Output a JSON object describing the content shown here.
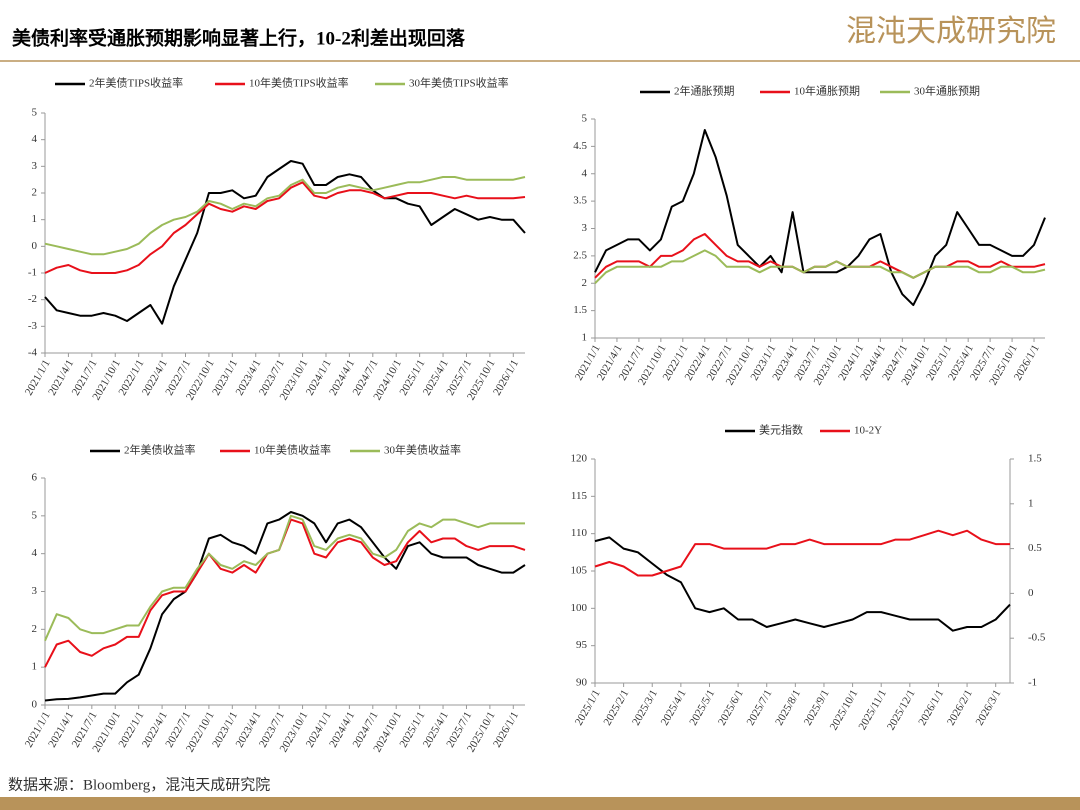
{
  "header": {
    "title": "美债利率受通胀预期影响显著上行，10-2利差出现回落",
    "logo": "混沌天成研究院"
  },
  "footer": {
    "source": "数据来源：Bloomberg，混沌天成研究院"
  },
  "chart_data": [
    {
      "type": "line",
      "categories": [
        "2021/1/1",
        null,
        "2021/4/1",
        null,
        "2021/7/1",
        null,
        "2021/10/1",
        null,
        "2022/1/1",
        null,
        "2022/4/1",
        null,
        "2022/7/1",
        null,
        "2022/10/1",
        null,
        "2023/1/1",
        null,
        "2023/4/1",
        null,
        "2023/7/1",
        null,
        "2023/10/1",
        null,
        "2024/1/1",
        null,
        "2024/4/1",
        null,
        "2024/7/1",
        null,
        "2024/10/1",
        null,
        "2025/1/1",
        null,
        "2025/4/1",
        null,
        "2025/7/1",
        null,
        "2025/10/1",
        null,
        "2026/1/1",
        null
      ],
      "ylim": [
        -4,
        5
      ],
      "yticks": [
        -4,
        -3,
        -2,
        -1,
        0,
        1,
        2,
        3,
        4,
        5
      ],
      "series": [
        {
          "name": "2年美债TIPS收益率",
          "color": "#000000",
          "values": [
            -1.9,
            -2.4,
            -2.5,
            -2.6,
            -2.6,
            -2.5,
            -2.6,
            -2.8,
            -2.5,
            -2.2,
            -2.9,
            -1.5,
            -0.5,
            0.5,
            2.0,
            2.0,
            2.1,
            1.8,
            1.9,
            2.6,
            2.9,
            3.2,
            3.1,
            2.3,
            2.3,
            2.6,
            2.7,
            2.6,
            2.1,
            1.8,
            1.8,
            1.6,
            1.5,
            0.8,
            1.1,
            1.4,
            1.2,
            1.0,
            1.1,
            1.0,
            1.0,
            0.5
          ]
        },
        {
          "name": "10年美债TIPS收益率",
          "color": "#e8101a",
          "values": [
            -1.0,
            -0.8,
            -0.7,
            -0.9,
            -1.0,
            -1.0,
            -1.0,
            -0.9,
            -0.7,
            -0.3,
            0.0,
            0.5,
            0.8,
            1.2,
            1.6,
            1.4,
            1.3,
            1.5,
            1.4,
            1.7,
            1.8,
            2.2,
            2.4,
            1.9,
            1.8,
            2.0,
            2.1,
            2.1,
            2.0,
            1.8,
            1.9,
            2.0,
            2.0,
            2.0,
            1.9,
            1.8,
            1.9,
            1.8,
            1.8,
            1.8,
            1.8,
            1.85
          ]
        },
        {
          "name": "30年美债TIPS收益率",
          "color": "#9bbb59",
          "values": [
            0.1,
            0.0,
            -0.1,
            -0.2,
            -0.3,
            -0.3,
            -0.2,
            -0.1,
            0.1,
            0.5,
            0.8,
            1.0,
            1.1,
            1.3,
            1.7,
            1.6,
            1.4,
            1.6,
            1.5,
            1.8,
            1.9,
            2.3,
            2.5,
            2.0,
            2.0,
            2.2,
            2.3,
            2.2,
            2.1,
            2.2,
            2.3,
            2.4,
            2.4,
            2.5,
            2.6,
            2.6,
            2.5,
            2.5,
            2.5,
            2.5,
            2.5,
            2.6
          ]
        }
      ]
    },
    {
      "type": "line",
      "categories": [
        "2021/1/1",
        null,
        "2021/4/1",
        null,
        "2021/7/1",
        null,
        "2021/10/1",
        null,
        "2022/1/1",
        null,
        "2022/4/1",
        null,
        "2022/7/1",
        null,
        "2022/10/1",
        null,
        "2023/1/1",
        null,
        "2023/4/1",
        null,
        "2023/7/1",
        null,
        "2023/10/1",
        null,
        "2024/1/1",
        null,
        "2024/4/1",
        null,
        "2024/7/1",
        null,
        "2024/10/1",
        null,
        "2025/1/1",
        null,
        "2025/4/1",
        null,
        "2025/7/1",
        null,
        "2025/10/1",
        null,
        "2026/1/1",
        null
      ],
      "ylim": [
        1,
        5
      ],
      "yticks": [
        1,
        1.5,
        2,
        2.5,
        3,
        3.5,
        4,
        4.5,
        5
      ],
      "series": [
        {
          "name": "2年通胀预期",
          "color": "#000000",
          "values": [
            2.2,
            2.6,
            2.7,
            2.8,
            2.8,
            2.6,
            2.8,
            3.4,
            3.5,
            4.0,
            4.8,
            4.3,
            3.6,
            2.7,
            2.5,
            2.3,
            2.5,
            2.2,
            3.3,
            2.2,
            2.2,
            2.2,
            2.2,
            2.3,
            2.5,
            2.8,
            2.9,
            2.2,
            1.8,
            1.6,
            2.0,
            2.5,
            2.7,
            3.3,
            3.0,
            2.7,
            2.7,
            2.6,
            2.5,
            2.5,
            2.7,
            3.2
          ]
        },
        {
          "name": "10年通胀预期",
          "color": "#e8101a",
          "values": [
            2.1,
            2.3,
            2.4,
            2.4,
            2.4,
            2.3,
            2.5,
            2.5,
            2.6,
            2.8,
            2.9,
            2.7,
            2.5,
            2.4,
            2.4,
            2.3,
            2.4,
            2.3,
            2.3,
            2.2,
            2.3,
            2.3,
            2.4,
            2.3,
            2.3,
            2.3,
            2.4,
            2.3,
            2.2,
            2.1,
            2.2,
            2.3,
            2.3,
            2.4,
            2.4,
            2.3,
            2.3,
            2.4,
            2.3,
            2.3,
            2.3,
            2.35
          ]
        },
        {
          "name": "30年通胀预期",
          "color": "#9bbb59",
          "values": [
            2.0,
            2.2,
            2.3,
            2.3,
            2.3,
            2.3,
            2.3,
            2.4,
            2.4,
            2.5,
            2.6,
            2.5,
            2.3,
            2.3,
            2.3,
            2.2,
            2.3,
            2.3,
            2.3,
            2.2,
            2.3,
            2.3,
            2.4,
            2.3,
            2.3,
            2.3,
            2.3,
            2.2,
            2.2,
            2.1,
            2.2,
            2.3,
            2.3,
            2.3,
            2.3,
            2.2,
            2.2,
            2.3,
            2.3,
            2.2,
            2.2,
            2.25
          ]
        }
      ]
    },
    {
      "type": "line",
      "categories": [
        "2021/1/1",
        null,
        "2021/4/1",
        null,
        "2021/7/1",
        null,
        "2021/10/1",
        null,
        "2022/1/1",
        null,
        "2022/4/1",
        null,
        "2022/7/1",
        null,
        "2022/10/1",
        null,
        "2023/1/1",
        null,
        "2023/4/1",
        null,
        "2023/7/1",
        null,
        "2023/10/1",
        null,
        "2024/1/1",
        null,
        "2024/4/1",
        null,
        "2024/7/1",
        null,
        "2024/10/1",
        null,
        "2025/1/1",
        null,
        "2025/4/1",
        null,
        "2025/7/1",
        null,
        "2025/10/1",
        null,
        "2026/1/1",
        null
      ],
      "ylim": [
        0,
        6
      ],
      "yticks": [
        0,
        1,
        2,
        3,
        4,
        5,
        6
      ],
      "series": [
        {
          "name": "2年美债收益率",
          "color": "#000000",
          "values": [
            0.12,
            0.15,
            0.16,
            0.2,
            0.25,
            0.3,
            0.3,
            0.6,
            0.8,
            1.5,
            2.4,
            2.8,
            3.0,
            3.5,
            4.4,
            4.5,
            4.3,
            4.2,
            4.0,
            4.8,
            4.9,
            5.1,
            5.0,
            4.8,
            4.3,
            4.8,
            4.9,
            4.7,
            4.3,
            3.9,
            3.6,
            4.2,
            4.3,
            4.0,
            3.9,
            3.9,
            3.9,
            3.7,
            3.6,
            3.5,
            3.5,
            3.7
          ]
        },
        {
          "name": "10年美债收益率",
          "color": "#e8101a",
          "values": [
            1.0,
            1.6,
            1.7,
            1.4,
            1.3,
            1.5,
            1.6,
            1.8,
            1.8,
            2.5,
            2.9,
            3.0,
            3.0,
            3.5,
            4.0,
            3.6,
            3.5,
            3.7,
            3.5,
            4.0,
            4.1,
            4.9,
            4.8,
            4.0,
            3.9,
            4.3,
            4.4,
            4.3,
            3.9,
            3.7,
            3.8,
            4.3,
            4.6,
            4.3,
            4.4,
            4.4,
            4.2,
            4.1,
            4.2,
            4.2,
            4.2,
            4.1
          ]
        },
        {
          "name": "30年美债收益率",
          "color": "#9bbb59",
          "values": [
            1.7,
            2.4,
            2.3,
            2.0,
            1.9,
            1.9,
            2.0,
            2.1,
            2.1,
            2.6,
            3.0,
            3.1,
            3.1,
            3.6,
            4.0,
            3.7,
            3.6,
            3.8,
            3.7,
            4.0,
            4.1,
            5.0,
            4.9,
            4.2,
            4.1,
            4.4,
            4.5,
            4.4,
            4.0,
            3.9,
            4.1,
            4.6,
            4.8,
            4.7,
            4.9,
            4.9,
            4.8,
            4.7,
            4.8,
            4.8,
            4.8,
            4.8
          ]
        }
      ]
    },
    {
      "type": "line",
      "categories": [
        "2025/1/1",
        null,
        "2025/2/1",
        null,
        "2025/3/1",
        null,
        "2025/4/1",
        null,
        "2025/5/1",
        null,
        "2025/6/1",
        null,
        "2025/7/1",
        null,
        "2025/8/1",
        null,
        "2025/9/1",
        null,
        "2025/10/1",
        null,
        "2025/11/1",
        null,
        "2025/12/1",
        null,
        "2026/1/1",
        null,
        "2026/2/1",
        null,
        "2026/3/1",
        null
      ],
      "ylim": [
        90,
        120
      ],
      "yticks": [
        90,
        95,
        100,
        105,
        110,
        115,
        120
      ],
      "y2lim": [
        -1,
        1.5
      ],
      "y2ticks": [
        -1,
        -0.5,
        0,
        0.5,
        1,
        1.5
      ],
      "series": [
        {
          "name": "美元指数",
          "color": "#000000",
          "values": [
            109,
            109.5,
            108,
            107.5,
            106,
            104.5,
            103.5,
            100,
            99.5,
            100,
            98.5,
            98.5,
            97.5,
            98,
            98.5,
            98,
            97.5,
            98,
            98.5,
            99.5,
            99.5,
            99,
            98.5,
            98.5,
            98.5,
            97,
            97.5,
            97.5,
            98.5,
            100.5
          ]
        },
        {
          "name": "10-2Y",
          "color": "#e8101a",
          "axis": "y2",
          "values": [
            0.3,
            0.35,
            0.3,
            0.2,
            0.2,
            0.25,
            0.3,
            0.55,
            0.55,
            0.5,
            0.5,
            0.5,
            0.5,
            0.55,
            0.55,
            0.6,
            0.55,
            0.55,
            0.55,
            0.55,
            0.55,
            0.6,
            0.6,
            0.65,
            0.7,
            0.65,
            0.7,
            0.6,
            0.55,
            0.55
          ]
        }
      ]
    }
  ]
}
